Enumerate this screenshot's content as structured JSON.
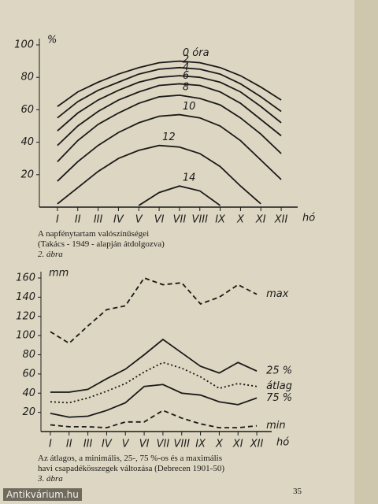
{
  "chart_data": [
    {
      "type": "line",
      "y_unit": "%",
      "x_label": "hó",
      "caption": [
        "A napfénytartam valószínűségei",
        "(Takács - 1949 - alapján átdolgozva)"
      ],
      "figure": "2. ábra",
      "categories": [
        "I",
        "II",
        "III",
        "IV",
        "V",
        "VI",
        "VII",
        "VIII",
        "IX",
        "X",
        "XI",
        "XII"
      ],
      "ylim": [
        0,
        100
      ],
      "yticks": [
        20,
        40,
        60,
        80,
        100
      ],
      "series": [
        {
          "name": "0 óra",
          "color": "#1a1a1a",
          "values": [
            62,
            71,
            77,
            82,
            86,
            89,
            90,
            89,
            86,
            81,
            74,
            66
          ]
        },
        {
          "name": "2",
          "color": "#1a1a1a",
          "values": [
            55,
            65,
            72,
            77,
            82,
            85,
            86,
            85,
            82,
            76,
            68,
            59
          ]
        },
        {
          "name": "4",
          "color": "#1a1a1a",
          "values": [
            47,
            58,
            66,
            72,
            77,
            80,
            81,
            80,
            77,
            71,
            62,
            52
          ]
        },
        {
          "name": "6",
          "color": "#1a1a1a",
          "values": [
            38,
            50,
            59,
            66,
            71,
            75,
            76,
            75,
            71,
            64,
            54,
            44
          ]
        },
        {
          "name": "8",
          "color": "#1a1a1a",
          "values": [
            28,
            41,
            51,
            58,
            64,
            68,
            69,
            67,
            63,
            55,
            45,
            33
          ]
        },
        {
          "name": "10",
          "color": "#1a1a1a",
          "values": [
            16,
            28,
            38,
            46,
            52,
            56,
            57,
            55,
            50,
            41,
            29,
            17
          ]
        },
        {
          "name": "12",
          "color": "#1a1a1a",
          "values": [
            2,
            12,
            22,
            30,
            35,
            38,
            37,
            33,
            25,
            13,
            2,
            null
          ]
        },
        {
          "name": "14",
          "color": "#1a1a1a",
          "values": [
            null,
            null,
            null,
            null,
            1,
            9,
            13,
            10,
            1,
            null,
            null,
            null
          ]
        }
      ]
    },
    {
      "type": "line",
      "y_unit": "mm",
      "x_label": "hó",
      "caption": [
        "Az átlagos, a minimális, 25-, 75 %-os és a maximális",
        "havi csapadékösszegek változása (Debrecen 1901-50)"
      ],
      "figure": "3. ábra",
      "categories": [
        "I",
        "II",
        "III",
        "IV",
        "V",
        "VI",
        "VII",
        "VIII",
        "IX",
        "X",
        "XI",
        "XII"
      ],
      "ylim": [
        0,
        160
      ],
      "yticks": [
        20,
        40,
        60,
        80,
        100,
        120,
        140,
        160
      ],
      "series": [
        {
          "name": "max",
          "color": "#1a1a1a",
          "dash": "dashed",
          "values": [
            104,
            92,
            110,
            127,
            131,
            160,
            153,
            155,
            133,
            140,
            153,
            143
          ]
        },
        {
          "name": "25 %",
          "color": "#1a1a1a",
          "dash": "solid",
          "values": [
            41,
            41,
            44,
            55,
            65,
            80,
            96,
            82,
            68,
            61,
            72,
            63
          ]
        },
        {
          "name": "átlag",
          "color": "#1a1a1a",
          "dash": "dotted",
          "values": [
            31,
            30,
            35,
            42,
            50,
            62,
            72,
            66,
            57,
            45,
            50,
            47
          ]
        },
        {
          "name": "75 %",
          "color": "#1a1a1a",
          "dash": "solid",
          "values": [
            19,
            15,
            16,
            22,
            30,
            47,
            49,
            40,
            38,
            31,
            28,
            35
          ]
        },
        {
          "name": "min",
          "color": "#1a1a1a",
          "dash": "dashed",
          "values": [
            7,
            5,
            5,
            4,
            10,
            10,
            22,
            14,
            8,
            4,
            4,
            6
          ]
        }
      ]
    }
  ],
  "page_number": "35",
  "watermark": "Antikvárium.hu"
}
